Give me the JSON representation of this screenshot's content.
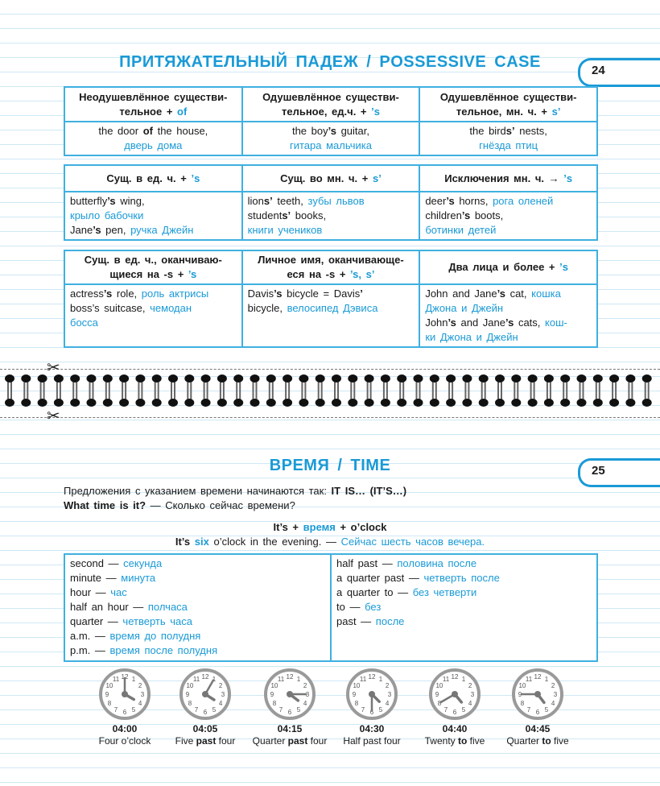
{
  "possessive": {
    "title": "ПРИТЯЖАТЕЛЬНЫЙ ПАДЕЖ / POSSESSIVE CASE",
    "page_number": "24",
    "tables": [
      {
        "headers": [
          [
            [
              [
                "Неодушевлённое существи-",
                ""
              ]
            ],
            [
              [
                "тельное + ",
                ""
              ],
              [
                "of",
                "c"
              ]
            ]
          ],
          [
            [
              [
                "Одушевлённое существи-",
                ""
              ]
            ],
            [
              [
                "тельное, ед.ч. + ",
                ""
              ],
              [
                "’s",
                "c"
              ]
            ]
          ],
          [
            [
              [
                "Одушевлённое существи-",
                ""
              ]
            ],
            [
              [
                "тельное, мн. ч. + ",
                ""
              ],
              [
                "s’",
                "c"
              ]
            ]
          ]
        ],
        "cells": [
          [
            [
              [
                "the door ",
                ""
              ],
              [
                "of",
                "b"
              ],
              [
                " the house,",
                ""
              ]
            ],
            [
              [
                "дверь дома",
                "c"
              ]
            ]
          ],
          [
            [
              [
                "the boy",
                ""
              ],
              [
                "’s",
                "b"
              ],
              [
                " guitar,",
                ""
              ]
            ],
            [
              [
                "гитара мальчика",
                "c"
              ]
            ]
          ],
          [
            [
              [
                "the bird",
                ""
              ],
              [
                "s’",
                "b"
              ],
              [
                " nests,",
                ""
              ]
            ],
            [
              [
                "гнёзда птиц",
                "c"
              ]
            ]
          ]
        ],
        "centered": true
      },
      {
        "headers": [
          [
            [
              [
                "Сущ. в ед. ч. + ",
                ""
              ],
              [
                "’s",
                "c"
              ]
            ]
          ],
          [
            [
              [
                "Сущ. во мн. ч. + ",
                ""
              ],
              [
                "s’",
                "c"
              ]
            ]
          ],
          [
            [
              [
                "Исключения мн. ч. → ",
                ""
              ],
              [
                "’s",
                "c"
              ]
            ]
          ]
        ],
        "cells": [
          [
            [
              [
                "butterfly",
                ""
              ],
              [
                "’s",
                "b"
              ],
              [
                " wing,",
                ""
              ]
            ],
            [
              [
                "крыло бабочки",
                "c"
              ]
            ],
            [
              [
                "Jane",
                ""
              ],
              [
                "’s",
                "b"
              ],
              [
                " pen, ",
                ""
              ],
              [
                "ручка Джейн",
                "c"
              ]
            ]
          ],
          [
            [
              [
                "lion",
                ""
              ],
              [
                "s’",
                "b"
              ],
              [
                " teeth, ",
                ""
              ],
              [
                "зубы львов",
                "c"
              ]
            ],
            [
              [
                "student",
                ""
              ],
              [
                "s’",
                "b"
              ],
              [
                " books,",
                ""
              ]
            ],
            [
              [
                "книги учеников",
                "c"
              ]
            ]
          ],
          [
            [
              [
                "deer",
                ""
              ],
              [
                "’s",
                "b"
              ],
              [
                " horns, ",
                ""
              ],
              [
                "рога оленей",
                "c"
              ]
            ],
            [
              [
                "children",
                ""
              ],
              [
                "’s",
                "b"
              ],
              [
                " boots,",
                ""
              ]
            ],
            [
              [
                "ботинки детей",
                "c"
              ]
            ]
          ]
        ],
        "centered": false
      },
      {
        "headers": [
          [
            [
              [
                "Сущ. в ед. ч., оканчиваю-",
                ""
              ]
            ],
            [
              [
                "щиеся на -s + ",
                ""
              ],
              [
                "’s",
                "c"
              ]
            ]
          ],
          [
            [
              [
                "Личное имя, оканчивающе-",
                ""
              ]
            ],
            [
              [
                "еся на -s + ",
                ""
              ],
              [
                "’s, s’",
                "c"
              ]
            ]
          ],
          [
            [
              [
                "Два лица и более + ",
                ""
              ],
              [
                "’s",
                "c"
              ]
            ]
          ]
        ],
        "cells": [
          [
            [
              [
                "actress",
                ""
              ],
              [
                "’s",
                "b"
              ],
              [
                " role, ",
                ""
              ],
              [
                "роль актрисы",
                "c"
              ]
            ],
            [
              [
                "boss’s suitcase, ",
                ""
              ],
              [
                "чемодан",
                "c"
              ]
            ],
            [
              [
                "босса",
                "c"
              ]
            ]
          ],
          [
            [
              [
                "Davis",
                ""
              ],
              [
                "’s",
                "b"
              ],
              [
                " bicycle = Davis",
                ""
              ],
              [
                "’",
                "b"
              ]
            ],
            [
              [
                "bicycle, ",
                ""
              ],
              [
                "велосипед Дэвиса",
                "c"
              ]
            ]
          ],
          [
            [
              [
                "John and Jane",
                ""
              ],
              [
                "’s",
                "b"
              ],
              [
                " cat, ",
                ""
              ],
              [
                "кошка",
                "c"
              ]
            ],
            [
              [
                "Джона и Джейн",
                "c"
              ]
            ],
            [
              [
                "John",
                ""
              ],
              [
                "’s",
                "b"
              ],
              [
                " and Jane",
                ""
              ],
              [
                "’s",
                "b"
              ],
              [
                " cats, ",
                ""
              ],
              [
                "кош-",
                "c"
              ]
            ],
            [
              [
                "ки Джона и Джейн",
                "c"
              ]
            ]
          ]
        ],
        "centered": false
      }
    ]
  },
  "time": {
    "title": "ВРЕМЯ / TIME",
    "page_number": "25",
    "intro": [
      [
        [
          "Предложения с указанием времени начинаются так: ",
          ""
        ],
        [
          "IT IS… (IT’S…)",
          "b"
        ]
      ],
      [
        [
          "What time is it?",
          "b"
        ],
        [
          " — Сколько сейчас времени?",
          ""
        ]
      ]
    ],
    "formula": [
      [
        "It’s + ",
        "b"
      ],
      [
        "время",
        "bc"
      ],
      [
        " + o’clock",
        "b"
      ]
    ],
    "example": [
      [
        "It’s ",
        "b"
      ],
      [
        "six",
        "bc"
      ],
      [
        " o’clock in the evening. — ",
        ""
      ],
      [
        "Сейчас шесть часов вечера.",
        "c"
      ]
    ],
    "vocab_left": [
      [
        [
          "second — ",
          ""
        ],
        [
          "секунда",
          "c"
        ]
      ],
      [
        [
          "minute — ",
          ""
        ],
        [
          "минута",
          "c"
        ]
      ],
      [
        [
          "hour — ",
          ""
        ],
        [
          "час",
          "c"
        ]
      ],
      [
        [
          "half an hour — ",
          ""
        ],
        [
          "полчаса",
          "c"
        ]
      ],
      [
        [
          "quarter — ",
          ""
        ],
        [
          "четверть часа",
          "c"
        ]
      ],
      [
        [
          "a.m. — ",
          ""
        ],
        [
          "время до полудня",
          "c"
        ]
      ],
      [
        [
          "p.m. — ",
          ""
        ],
        [
          "время после полудня",
          "c"
        ]
      ]
    ],
    "vocab_right": [
      [
        [
          "half past — ",
          ""
        ],
        [
          "половина после",
          "c"
        ]
      ],
      [
        [
          "a quarter past — ",
          ""
        ],
        [
          "четверть после",
          "c"
        ]
      ],
      [
        [
          "a quarter to — ",
          ""
        ],
        [
          "без четверти",
          "c"
        ]
      ],
      [
        [
          "to — ",
          ""
        ],
        [
          "без",
          "c"
        ]
      ],
      [
        [
          "past — ",
          ""
        ],
        [
          "после",
          "c"
        ]
      ]
    ],
    "clocks": [
      {
        "time": "04:00",
        "hour": 4,
        "minute": 0,
        "label": [
          [
            "Four o’clock",
            ""
          ]
        ]
      },
      {
        "time": "04:05",
        "hour": 4,
        "minute": 5,
        "label": [
          [
            "Five ",
            ""
          ],
          [
            "past",
            "b"
          ],
          [
            " four",
            ""
          ]
        ]
      },
      {
        "time": "04:15",
        "hour": 4,
        "minute": 15,
        "label": [
          [
            "Quarter ",
            ""
          ],
          [
            "past",
            "b"
          ],
          [
            " four",
            ""
          ]
        ]
      },
      {
        "time": "04:30",
        "hour": 4,
        "minute": 30,
        "label": [
          [
            "Half past four",
            ""
          ]
        ]
      },
      {
        "time": "04:40",
        "hour": 4,
        "minute": 40,
        "label": [
          [
            "Twenty ",
            ""
          ],
          [
            "to",
            "b"
          ],
          [
            " five",
            ""
          ]
        ]
      },
      {
        "time": "04:45",
        "hour": 4,
        "minute": 45,
        "label": [
          [
            "Quarter ",
            ""
          ],
          [
            "to",
            "b"
          ],
          [
            " five",
            ""
          ]
        ]
      }
    ]
  },
  "colors": {
    "accent": "#1a9ad6",
    "border": "#3fb0e0",
    "lines": "#cfe8f5",
    "clock": "#8a8a8a"
  },
  "icons": {
    "cut": "scissors-icon",
    "binding": "spiral-ring-icon"
  }
}
